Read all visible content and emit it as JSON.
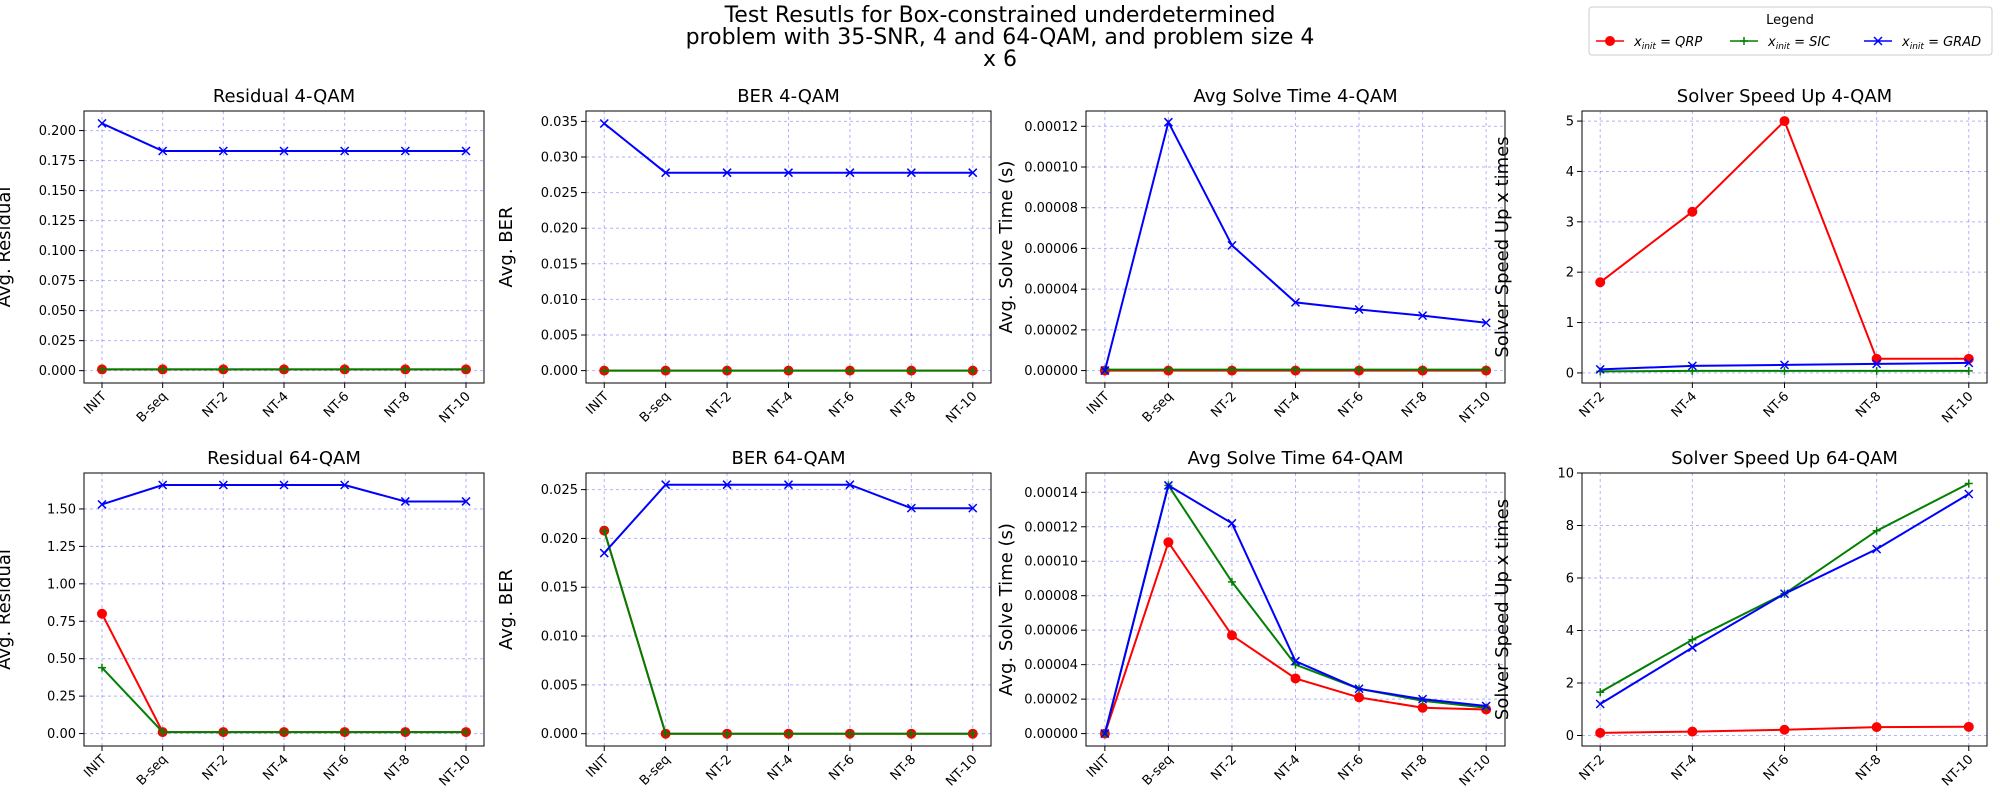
{
  "figure": {
    "suptitle_lines": [
      "Test Resutls for Box-constrained underdetermined",
      "problem with 35-SNR, 4 and 64-QAM, and problem size 4",
      "x 6"
    ]
  },
  "legend": {
    "title": "Legend",
    "items": [
      {
        "label": "QRP",
        "color": "#ff0000",
        "marker": "circle"
      },
      {
        "label": "SIC",
        "color": "#008000",
        "marker": "plus"
      },
      {
        "label": "GRAD",
        "color": "#0000ff",
        "marker": "x"
      }
    ]
  },
  "chart_data": [
    {
      "id": "residual-4qam",
      "type": "line",
      "title": "Residual 4-QAM",
      "xlabel": "",
      "ylabel": "Avg. Residual",
      "categories": [
        "INIT",
        "B-seq",
        "NT-2",
        "NT-4",
        "NT-6",
        "NT-8",
        "NT-10"
      ],
      "ylim": [
        -0.0103,
        0.2163
      ],
      "yticks": [
        0.0,
        0.025,
        0.05,
        0.075,
        0.1,
        0.125,
        0.15,
        0.175,
        0.2
      ],
      "ytick_labels": [
        "0.000",
        "0.025",
        "0.050",
        "0.075",
        "0.100",
        "0.125",
        "0.150",
        "0.175",
        "0.200"
      ],
      "grid": true,
      "series": [
        {
          "legend_index": 0,
          "values": [
            0.001,
            0.001,
            0.001,
            0.001,
            0.001,
            0.001,
            0.001
          ]
        },
        {
          "legend_index": 1,
          "values": [
            0.001,
            0.001,
            0.001,
            0.001,
            0.001,
            0.001,
            0.001
          ]
        },
        {
          "legend_index": 2,
          "values": [
            0.206,
            0.183,
            0.183,
            0.183,
            0.183,
            0.183,
            0.183
          ]
        }
      ]
    },
    {
      "id": "ber-4qam",
      "type": "line",
      "title": "BER 4-QAM",
      "xlabel": "",
      "ylabel": "Avg. BER",
      "categories": [
        "INIT",
        "B-seq",
        "NT-2",
        "NT-4",
        "NT-6",
        "NT-8",
        "NT-10"
      ],
      "ylim": [
        -0.00174,
        0.03646
      ],
      "yticks": [
        0.0,
        0.005,
        0.01,
        0.015,
        0.02,
        0.025,
        0.03,
        0.035
      ],
      "ytick_labels": [
        "0.000",
        "0.005",
        "0.010",
        "0.015",
        "0.020",
        "0.025",
        "0.030",
        "0.035"
      ],
      "grid": true,
      "series": [
        {
          "legend_index": 0,
          "values": [
            0,
            0,
            0,
            0,
            0,
            0,
            0
          ]
        },
        {
          "legend_index": 1,
          "values": [
            0,
            0,
            0,
            0,
            0,
            0,
            0
          ]
        },
        {
          "legend_index": 2,
          "values": [
            0.0347,
            0.0278,
            0.0278,
            0.0278,
            0.0278,
            0.0278,
            0.0278
          ]
        }
      ]
    },
    {
      "id": "time-4qam",
      "type": "line",
      "title": "Avg Solve Time 4-QAM",
      "xlabel": "",
      "ylabel": "Avg. Solve Time (s)",
      "categories": [
        "INIT",
        "B-seq",
        "NT-2",
        "NT-4",
        "NT-6",
        "NT-8",
        "NT-10"
      ],
      "ylim": [
        -6.1e-06,
        0.0001275
      ],
      "yticks": [
        0,
        2e-05,
        4e-05,
        6e-05,
        8e-05,
        0.0001,
        0.00012
      ],
      "ytick_labels": [
        "0.00000",
        "0.00002",
        "0.00004",
        "0.00006",
        "0.00008",
        "0.00010",
        "0.00012"
      ],
      "grid": true,
      "series": [
        {
          "legend_index": 0,
          "values": [
            0,
            0,
            0,
            0,
            0,
            0,
            0
          ]
        },
        {
          "legend_index": 1,
          "values": [
            5e-07,
            5e-07,
            5e-07,
            5e-07,
            5e-07,
            5e-07,
            5e-07
          ]
        },
        {
          "legend_index": 2,
          "values": [
            0,
            0.000122,
            6.15e-05,
            3.35e-05,
            3e-05,
            2.7e-05,
            2.35e-05
          ]
        }
      ]
    },
    {
      "id": "speedup-4qam",
      "type": "line",
      "title": "Solver Speed Up 4-QAM",
      "xlabel": "",
      "ylabel": "Solver Speed Up x times",
      "categories": [
        "NT-2",
        "NT-4",
        "NT-6",
        "NT-8",
        "NT-10"
      ],
      "ylim": [
        -0.2,
        5.2
      ],
      "yticks": [
        0,
        1,
        2,
        3,
        4,
        5
      ],
      "ytick_labels": [
        "0",
        "1",
        "2",
        "3",
        "4",
        "5"
      ],
      "grid": true,
      "series": [
        {
          "legend_index": 0,
          "values": [
            1.8,
            3.2,
            5.0,
            0.28,
            0.28
          ]
        },
        {
          "legend_index": 1,
          "values": [
            0.03,
            0.04,
            0.04,
            0.04,
            0.04
          ]
        },
        {
          "legend_index": 2,
          "values": [
            0.07,
            0.14,
            0.16,
            0.18,
            0.2
          ]
        }
      ]
    },
    {
      "id": "residual-64qam",
      "type": "line",
      "title": "Residual 64-QAM",
      "xlabel": "",
      "ylabel": "Avg. Residual",
      "categories": [
        "INIT",
        "B-seq",
        "NT-2",
        "NT-4",
        "NT-6",
        "NT-8",
        "NT-10"
      ],
      "ylim": [
        -0.083,
        1.74
      ],
      "yticks": [
        0.0,
        0.25,
        0.5,
        0.75,
        1.0,
        1.25,
        1.5
      ],
      "ytick_labels": [
        "0.00",
        "0.25",
        "0.50",
        "0.75",
        "1.00",
        "1.25",
        "1.50"
      ],
      "grid": true,
      "series": [
        {
          "legend_index": 0,
          "values": [
            0.8,
            0.01,
            0.01,
            0.01,
            0.01,
            0.01,
            0.01
          ]
        },
        {
          "legend_index": 1,
          "values": [
            0.44,
            0.01,
            0.01,
            0.01,
            0.01,
            0.01,
            0.01
          ]
        },
        {
          "legend_index": 2,
          "values": [
            1.53,
            1.66,
            1.66,
            1.66,
            1.66,
            1.55,
            1.55
          ]
        }
      ]
    },
    {
      "id": "ber-64qam",
      "type": "line",
      "title": "BER 64-QAM",
      "xlabel": "",
      "ylabel": "Avg. BER",
      "categories": [
        "INIT",
        "B-seq",
        "NT-2",
        "NT-4",
        "NT-6",
        "NT-8",
        "NT-10"
      ],
      "ylim": [
        -0.00126,
        0.0267
      ],
      "yticks": [
        0.0,
        0.005,
        0.01,
        0.015,
        0.02,
        0.025
      ],
      "ytick_labels": [
        "0.000",
        "0.005",
        "0.010",
        "0.015",
        "0.020",
        "0.025"
      ],
      "grid": true,
      "series": [
        {
          "legend_index": 0,
          "values": [
            0.0208,
            0,
            0,
            0,
            0,
            0,
            0
          ]
        },
        {
          "legend_index": 1,
          "values": [
            0.0208,
            0,
            0,
            0,
            0,
            0,
            0
          ]
        },
        {
          "legend_index": 2,
          "values": [
            0.0185,
            0.0255,
            0.0255,
            0.0255,
            0.0255,
            0.0231,
            0.0231
          ]
        }
      ]
    },
    {
      "id": "time-64qam",
      "type": "line",
      "title": "Avg Solve Time 64-QAM",
      "xlabel": "",
      "ylabel": "Avg. Solve Time (s)",
      "categories": [
        "INIT",
        "B-seq",
        "NT-2",
        "NT-4",
        "NT-6",
        "NT-8",
        "NT-10"
      ],
      "ylim": [
        -7.2e-06,
        0.0001512
      ],
      "yticks": [
        0,
        2e-05,
        4e-05,
        6e-05,
        8e-05,
        0.0001,
        0.00012,
        0.00014
      ],
      "ytick_labels": [
        "0.00000",
        "0.00002",
        "0.00004",
        "0.00006",
        "0.00008",
        "0.00010",
        "0.00012",
        "0.00014"
      ],
      "grid": true,
      "series": [
        {
          "legend_index": 0,
          "values": [
            0,
            0.000111,
            5.7e-05,
            3.2e-05,
            2.1e-05,
            1.5e-05,
            1.4e-05
          ]
        },
        {
          "legend_index": 1,
          "values": [
            0,
            0.000144,
            8.8e-05,
            4e-05,
            2.6e-05,
            1.9e-05,
            1.5e-05
          ]
        },
        {
          "legend_index": 2,
          "values": [
            0,
            0.000144,
            0.000122,
            4.2e-05,
            2.6e-05,
            2e-05,
            1.6e-05
          ]
        }
      ]
    },
    {
      "id": "speedup-64qam",
      "type": "line",
      "title": "Solver Speed Up 64-QAM",
      "xlabel": "",
      "ylabel": "Solver Speed Up x times",
      "categories": [
        "NT-2",
        "NT-4",
        "NT-6",
        "NT-8",
        "NT-10"
      ],
      "ylim": [
        -0.4,
        10.0
      ],
      "yticks": [
        0,
        2,
        4,
        6,
        8,
        10
      ],
      "ytick_labels": [
        "0",
        "2",
        "4",
        "6",
        "8",
        "10"
      ],
      "grid": true,
      "series": [
        {
          "legend_index": 0,
          "values": [
            0.1,
            0.15,
            0.22,
            0.32,
            0.33
          ]
        },
        {
          "legend_index": 1,
          "values": [
            1.65,
            3.65,
            5.4,
            7.8,
            9.6
          ]
        },
        {
          "legend_index": 2,
          "values": [
            1.2,
            3.35,
            5.4,
            7.1,
            9.2
          ]
        }
      ]
    }
  ]
}
